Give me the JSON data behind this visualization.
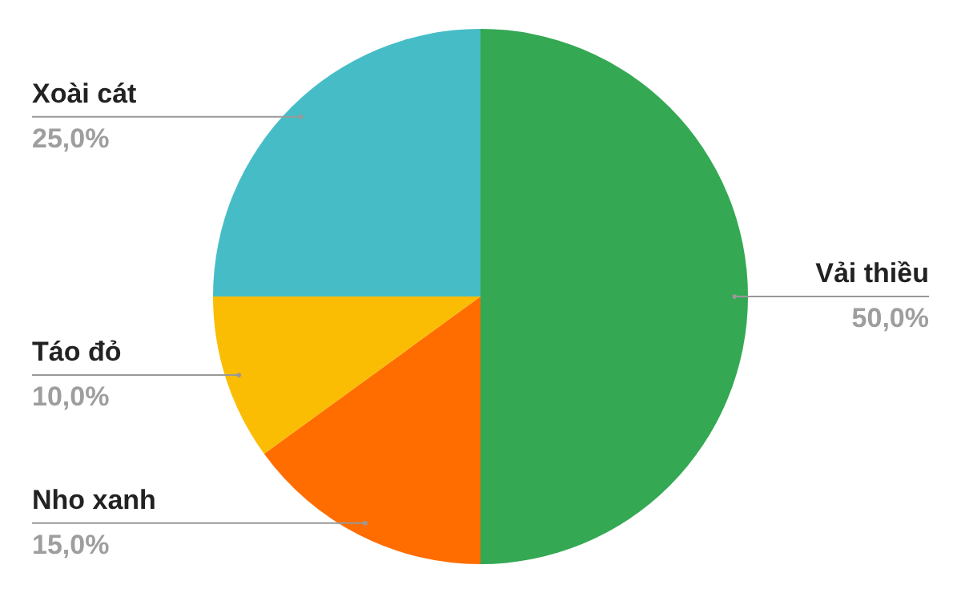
{
  "chart_data": {
    "type": "pie",
    "categories": [
      "Vải thiều",
      "Nho xanh",
      "Táo đỏ",
      "Xoài cát"
    ],
    "values": [
      50,
      15,
      10,
      25
    ],
    "colors": [
      "#34a853",
      "#ff6d01",
      "#fbbc04",
      "#46bdc6"
    ],
    "value_labels": [
      "50,0%",
      "15,0%",
      "10,0%",
      "25,0%"
    ]
  }
}
